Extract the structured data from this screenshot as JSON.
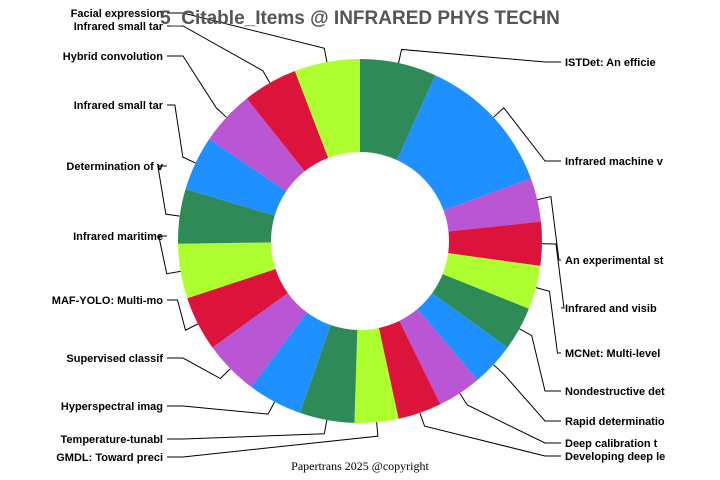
{
  "chart_data": {
    "type": "pie",
    "subtype": "donut",
    "title": "5_Citable_Items @ INFRARED PHYS TECHN",
    "footer": "Papertrans 2025 @copyright",
    "slices": [
      {
        "label": "ISTDet: An efficie",
        "value": 7
      },
      {
        "label": "Infrared machine v",
        "value": 13
      },
      {
        "label": "An experimental st",
        "value": 4
      },
      {
        "label": "Infrared and visib",
        "value": 4
      },
      {
        "label": "MCNet: Multi-level",
        "value": 4
      },
      {
        "label": "Nondestructive det",
        "value": 4
      },
      {
        "label": "Rapid determinatio",
        "value": 4
      },
      {
        "label": "Deep calibration t",
        "value": 4
      },
      {
        "label": "Developing deep le",
        "value": 4
      },
      {
        "label": "GMDL: Toward preci",
        "value": 4
      },
      {
        "label": "Temperature-tunabl",
        "value": 5
      },
      {
        "label": "Hyperspectral imag",
        "value": 5
      },
      {
        "label": "Supervised classif",
        "value": 5
      },
      {
        "label": "MAF-YOLO: Multi-mo",
        "value": 5
      },
      {
        "label": "Infrared maritime ",
        "value": 5
      },
      {
        "label": "Determination of v",
        "value": 5
      },
      {
        "label": "Infrared small tar",
        "value": 5
      },
      {
        "label": "Hybrid convolution",
        "value": 5
      },
      {
        "label": "Infrared small tar",
        "value": 5
      },
      {
        "label": "Facial expression",
        "value": 6
      }
    ],
    "colors": [
      "#2e8b57",
      "#1e90ff",
      "#ba55d3",
      "#dc143c",
      "#adff2f"
    ]
  }
}
